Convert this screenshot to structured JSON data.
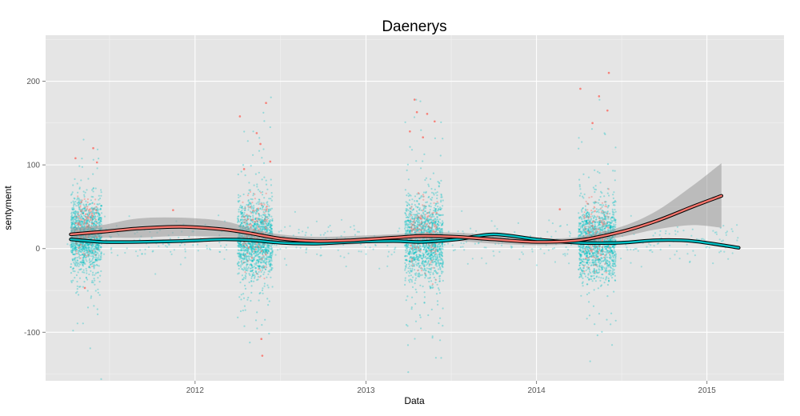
{
  "chart_data": {
    "type": "scatter",
    "title": "Daenerys",
    "xlabel": "Data",
    "ylabel": "sentyment",
    "x_domain": [
      "2011-02-15",
      "2015-06-15"
    ],
    "ylim": [
      -158,
      255
    ],
    "x_ticks": [
      {
        "label": "2012",
        "date": "2012-01-01"
      },
      {
        "label": "2013",
        "date": "2013-01-01"
      },
      {
        "label": "2014",
        "date": "2014-01-01"
      },
      {
        "label": "2015",
        "date": "2015-01-01"
      }
    ],
    "y_ticks": [
      -100,
      0,
      100,
      200
    ],
    "grid": true,
    "legend": "none",
    "colors": {
      "panel_bg": "#e5e5e5",
      "grid_major": "#ffffff",
      "grid_minor": "#f2f2f2",
      "series_red": "#f8766d",
      "series_teal": "#00bfc4",
      "ribbon": "#999999",
      "line_outline": "#000000"
    },
    "clusters": [
      {
        "start": "2011-04-10",
        "end": "2011-06-15",
        "center": 15,
        "spread": 35
      },
      {
        "start": "2012-04-01",
        "end": "2012-06-15",
        "center": 12,
        "spread": 40
      },
      {
        "start": "2013-03-25",
        "end": "2013-06-15",
        "center": 10,
        "spread": 42
      },
      {
        "start": "2014-04-01",
        "end": "2014-06-20",
        "center": 8,
        "spread": 40
      }
    ],
    "series": [
      {
        "color_key": "series_red",
        "smooth": [
          {
            "x": "2011-04-10",
            "y": 17
          },
          {
            "x": "2011-06-15",
            "y": 20
          },
          {
            "x": "2011-09-01",
            "y": 24
          },
          {
            "x": "2011-12-01",
            "y": 26
          },
          {
            "x": "2012-03-01",
            "y": 23
          },
          {
            "x": "2012-05-01",
            "y": 18
          },
          {
            "x": "2012-07-01",
            "y": 12
          },
          {
            "x": "2012-09-15",
            "y": 9
          },
          {
            "x": "2012-12-01",
            "y": 10
          },
          {
            "x": "2013-03-01",
            "y": 13
          },
          {
            "x": "2013-05-01",
            "y": 15
          },
          {
            "x": "2013-07-15",
            "y": 14
          },
          {
            "x": "2013-10-01",
            "y": 11
          },
          {
            "x": "2014-01-01",
            "y": 8
          },
          {
            "x": "2014-04-01",
            "y": 10
          },
          {
            "x": "2014-07-01",
            "y": 20
          },
          {
            "x": "2014-09-15",
            "y": 33
          },
          {
            "x": "2014-12-01",
            "y": 50
          },
          {
            "x": "2015-02-01",
            "y": 63
          }
        ],
        "ribbon_upper": [
          {
            "x": "2011-04-10",
            "y": 25
          },
          {
            "x": "2011-06-15",
            "y": 28
          },
          {
            "x": "2011-09-01",
            "y": 36
          },
          {
            "x": "2011-12-01",
            "y": 37
          },
          {
            "x": "2012-03-01",
            "y": 33
          },
          {
            "x": "2012-05-01",
            "y": 24
          },
          {
            "x": "2012-07-01",
            "y": 17
          },
          {
            "x": "2012-09-15",
            "y": 14
          },
          {
            "x": "2012-12-01",
            "y": 15
          },
          {
            "x": "2013-03-01",
            "y": 17
          },
          {
            "x": "2013-05-01",
            "y": 19
          },
          {
            "x": "2013-07-15",
            "y": 19
          },
          {
            "x": "2013-10-01",
            "y": 16
          },
          {
            "x": "2014-01-01",
            "y": 12
          },
          {
            "x": "2014-04-01",
            "y": 14
          },
          {
            "x": "2014-07-01",
            "y": 26
          },
          {
            "x": "2014-09-15",
            "y": 45
          },
          {
            "x": "2014-12-01",
            "y": 75
          },
          {
            "x": "2015-02-01",
            "y": 102
          }
        ],
        "ribbon_lower": [
          {
            "x": "2011-04-10",
            "y": 10
          },
          {
            "x": "2011-06-15",
            "y": 13
          },
          {
            "x": "2011-09-01",
            "y": 13
          },
          {
            "x": "2011-12-01",
            "y": 15
          },
          {
            "x": "2012-03-01",
            "y": 14
          },
          {
            "x": "2012-05-01",
            "y": 12
          },
          {
            "x": "2012-07-01",
            "y": 7
          },
          {
            "x": "2012-09-15",
            "y": 4
          },
          {
            "x": "2012-12-01",
            "y": 5
          },
          {
            "x": "2013-03-01",
            "y": 9
          },
          {
            "x": "2013-05-01",
            "y": 11
          },
          {
            "x": "2013-07-15",
            "y": 9
          },
          {
            "x": "2013-10-01",
            "y": 6
          },
          {
            "x": "2014-01-01",
            "y": 4
          },
          {
            "x": "2014-04-01",
            "y": 6
          },
          {
            "x": "2014-07-01",
            "y": 14
          },
          {
            "x": "2014-09-15",
            "y": 23
          },
          {
            "x": "2014-12-01",
            "y": 28
          },
          {
            "x": "2015-02-01",
            "y": 25
          }
        ],
        "highlight_points": [
          {
            "x": "2011-04-20",
            "y": 108
          },
          {
            "x": "2011-05-28",
            "y": 120
          },
          {
            "x": "2011-06-05",
            "y": 103
          },
          {
            "x": "2011-05-10",
            "y": -47
          },
          {
            "x": "2012-04-06",
            "y": 158
          },
          {
            "x": "2012-05-12",
            "y": 138
          },
          {
            "x": "2012-06-01",
            "y": 174
          },
          {
            "x": "2012-05-20",
            "y": 125
          },
          {
            "x": "2012-05-22",
            "y": -108
          },
          {
            "x": "2012-05-24",
            "y": -128
          },
          {
            "x": "2012-06-10",
            "y": 104
          },
          {
            "x": "2012-04-15",
            "y": 95
          },
          {
            "x": "2013-04-15",
            "y": 178
          },
          {
            "x": "2013-04-20",
            "y": 163
          },
          {
            "x": "2013-05-12",
            "y": 161
          },
          {
            "x": "2013-05-28",
            "y": 152
          },
          {
            "x": "2013-04-05",
            "y": 140
          },
          {
            "x": "2013-05-03",
            "y": 133
          },
          {
            "x": "2014-04-05",
            "y": 191
          },
          {
            "x": "2014-05-15",
            "y": 182
          },
          {
            "x": "2014-06-05",
            "y": 210
          },
          {
            "x": "2014-06-02",
            "y": 165
          },
          {
            "x": "2014-05-01",
            "y": 150
          },
          {
            "x": "2014-02-20",
            "y": 47
          },
          {
            "x": "2011-11-15",
            "y": 46
          }
        ]
      },
      {
        "color_key": "series_teal",
        "smooth": [
          {
            "x": "2011-04-10",
            "y": 11
          },
          {
            "x": "2011-06-15",
            "y": 8
          },
          {
            "x": "2011-09-01",
            "y": 8
          },
          {
            "x": "2011-12-01",
            "y": 9
          },
          {
            "x": "2012-03-01",
            "y": 11
          },
          {
            "x": "2012-05-01",
            "y": 10
          },
          {
            "x": "2012-07-01",
            "y": 7
          },
          {
            "x": "2012-09-15",
            "y": 6
          },
          {
            "x": "2012-12-01",
            "y": 8
          },
          {
            "x": "2013-03-01",
            "y": 9
          },
          {
            "x": "2013-05-01",
            "y": 8
          },
          {
            "x": "2013-07-15",
            "y": 11
          },
          {
            "x": "2013-10-01",
            "y": 17
          },
          {
            "x": "2014-01-01",
            "y": 11
          },
          {
            "x": "2014-04-01",
            "y": 7
          },
          {
            "x": "2014-07-01",
            "y": 7
          },
          {
            "x": "2014-09-15",
            "y": 10
          },
          {
            "x": "2014-12-01",
            "y": 9
          },
          {
            "x": "2015-03-10",
            "y": 1
          }
        ]
      }
    ]
  }
}
